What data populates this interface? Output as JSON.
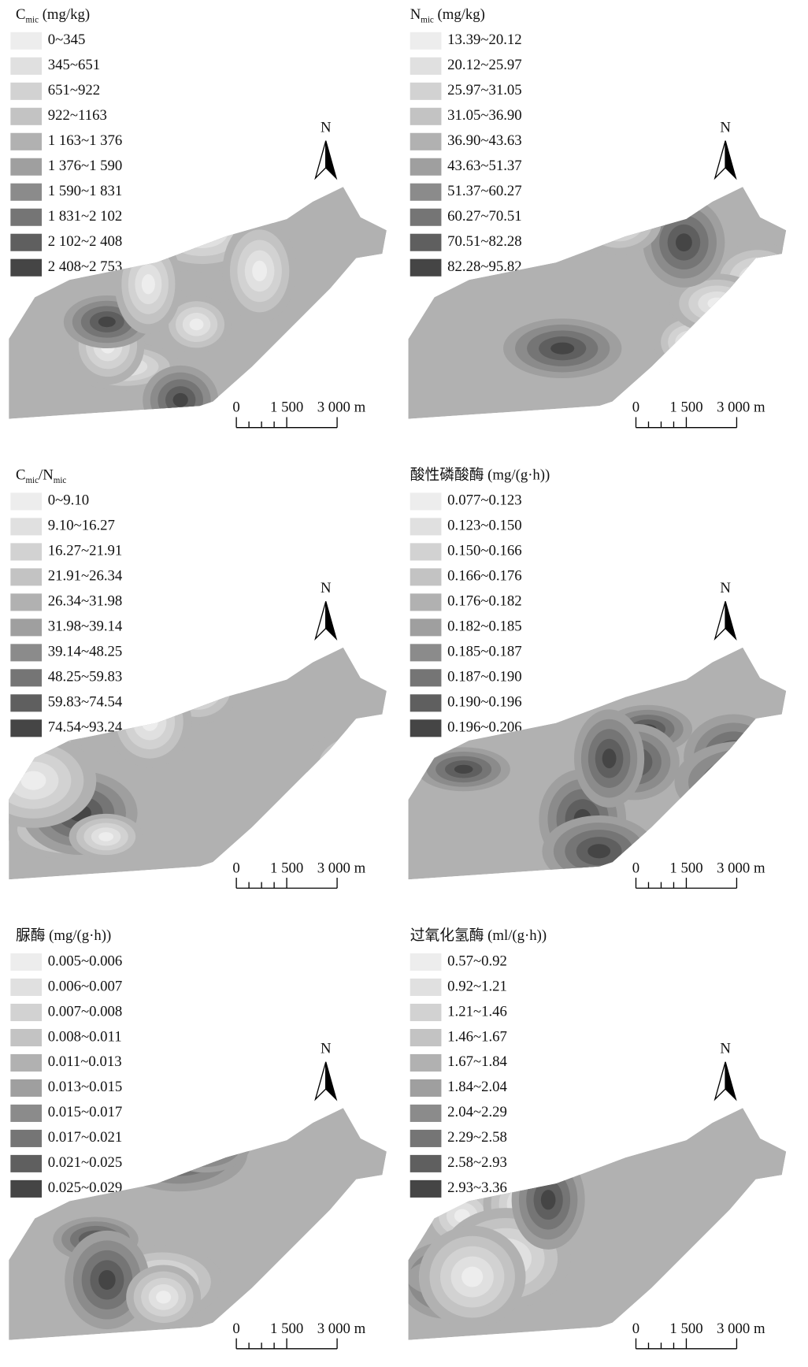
{
  "panels": [
    {
      "title": [
        {
          "text": "C"
        },
        {
          "text": "mic",
          "sub": true
        },
        {
          "text": " (mg/kg)"
        }
      ],
      "legend": [
        "0~345",
        "345~651",
        "651~922",
        "922~1163",
        "1 163~1 376",
        "1 376~1 590",
        "1 590~1 831",
        "1 831~2 102",
        "2 102~2 408",
        "2 408~2 753"
      ]
    },
    {
      "title": [
        {
          "text": "N"
        },
        {
          "text": "mic",
          "sub": true
        },
        {
          "text": " (mg/kg)"
        }
      ],
      "legend": [
        "13.39~20.12",
        "20.12~25.97",
        "25.97~31.05",
        "31.05~36.90",
        "36.90~43.63",
        "43.63~51.37",
        "51.37~60.27",
        "60.27~70.51",
        "70.51~82.28",
        "82.28~95.82"
      ]
    },
    {
      "title": [
        {
          "text": "C"
        },
        {
          "text": "mic",
          "sub": true
        },
        {
          "text": "/N"
        },
        {
          "text": "mic",
          "sub": true
        }
      ],
      "legend": [
        "0~9.10",
        "9.10~16.27",
        "16.27~21.91",
        "21.91~26.34",
        "26.34~31.98",
        "31.98~39.14",
        "39.14~48.25",
        "48.25~59.83",
        "59.83~74.54",
        "74.54~93.24"
      ]
    },
    {
      "title": [
        {
          "text": "酸性磷酸酶 (mg/(g·h))"
        }
      ],
      "legend": [
        "0.077~0.123",
        "0.123~0.150",
        "0.150~0.166",
        "0.166~0.176",
        "0.176~0.182",
        "0.182~0.185",
        "0.185~0.187",
        "0.187~0.190",
        "0.190~0.196",
        "0.196~0.206"
      ]
    },
    {
      "title": [
        {
          "text": "脲酶 (mg/(g·h))"
        }
      ],
      "legend": [
        "0.005~0.006",
        "0.006~0.007",
        "0.007~0.008",
        "0.008~0.011",
        "0.011~0.013",
        "0.013~0.015",
        "0.015~0.017",
        "0.017~0.021",
        "0.021~0.025",
        "0.025~0.029"
      ]
    },
    {
      "title": [
        {
          "text": "过氧化氢酶 (ml/(g·h))"
        }
      ],
      "legend": [
        "0.57~0.92",
        "0.92~1.21",
        "1.21~1.46",
        "1.46~1.67",
        "1.67~1.84",
        "1.84~2.04",
        "2.04~2.29",
        "2.29~2.58",
        "2.58~2.93",
        "2.93~3.36"
      ]
    }
  ],
  "legend_colors": [
    "#ededed",
    "#e0e0e0",
    "#d2d2d2",
    "#c3c3c3",
    "#b1b1b1",
    "#9f9f9f",
    "#8b8b8b",
    "#757575",
    "#5f5f5f",
    "#454545"
  ],
  "north": "N",
  "scale_bar": [
    "0",
    "1 500",
    "3 000 m"
  ]
}
